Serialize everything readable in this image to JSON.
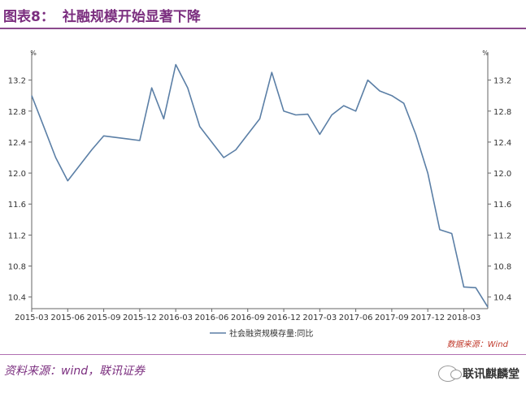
{
  "header": {
    "label": "图表8：",
    "title": "社融规模开始显著下降"
  },
  "footer": {
    "source": "资料来源：wind，联讯证券",
    "brand": "联讯麒麟堂"
  },
  "colors": {
    "line": "#5b7fa6",
    "brand": "#7b2e7f",
    "chart_source": "#c0392b"
  },
  "chart_data": {
    "type": "line",
    "unit_left": "%",
    "unit_right": "%",
    "chart_source": "数据来源：Wind",
    "x": [
      "2015-03",
      "2015-04",
      "2015-05",
      "2015-06",
      "2015-07",
      "2015-08",
      "2015-09",
      "2015-10",
      "2015-11",
      "2015-12",
      "2016-01",
      "2016-02",
      "2016-03",
      "2016-04",
      "2016-05",
      "2016-06",
      "2016-07",
      "2016-08",
      "2016-09",
      "2016-10",
      "2016-11",
      "2016-12",
      "2017-01",
      "2017-02",
      "2017-03",
      "2017-04",
      "2017-05",
      "2017-06",
      "2017-07",
      "2017-08",
      "2017-09",
      "2017-10",
      "2017-11",
      "2017-12",
      "2018-01",
      "2018-02",
      "2018-03",
      "2018-04",
      "2018-05"
    ],
    "xticks": [
      "2015-03",
      "2015-06",
      "2015-09",
      "2015-12",
      "2016-03",
      "2016-06",
      "2016-09",
      "2016-12",
      "2017-03",
      "2017-06",
      "2017-09",
      "2017-12",
      "2018-03"
    ],
    "yticks": [
      "10.4",
      "10.8",
      "11.2",
      "11.6",
      "12.0",
      "12.4",
      "12.8",
      "13.2"
    ],
    "ylim": [
      10.25,
      13.5
    ],
    "series": [
      {
        "name": "社会融资规模存量:同比",
        "values": [
          13.0,
          12.6,
          12.2,
          11.9,
          12.1,
          12.3,
          12.48,
          12.46,
          12.44,
          12.42,
          13.1,
          12.7,
          13.4,
          13.1,
          12.6,
          12.4,
          12.2,
          12.3,
          12.5,
          12.7,
          13.3,
          12.8,
          12.75,
          12.76,
          12.5,
          12.75,
          12.87,
          12.8,
          13.2,
          13.06,
          13.0,
          12.9,
          12.5,
          12.0,
          11.27,
          11.22,
          10.53,
          10.52,
          10.27
        ]
      }
    ]
  }
}
